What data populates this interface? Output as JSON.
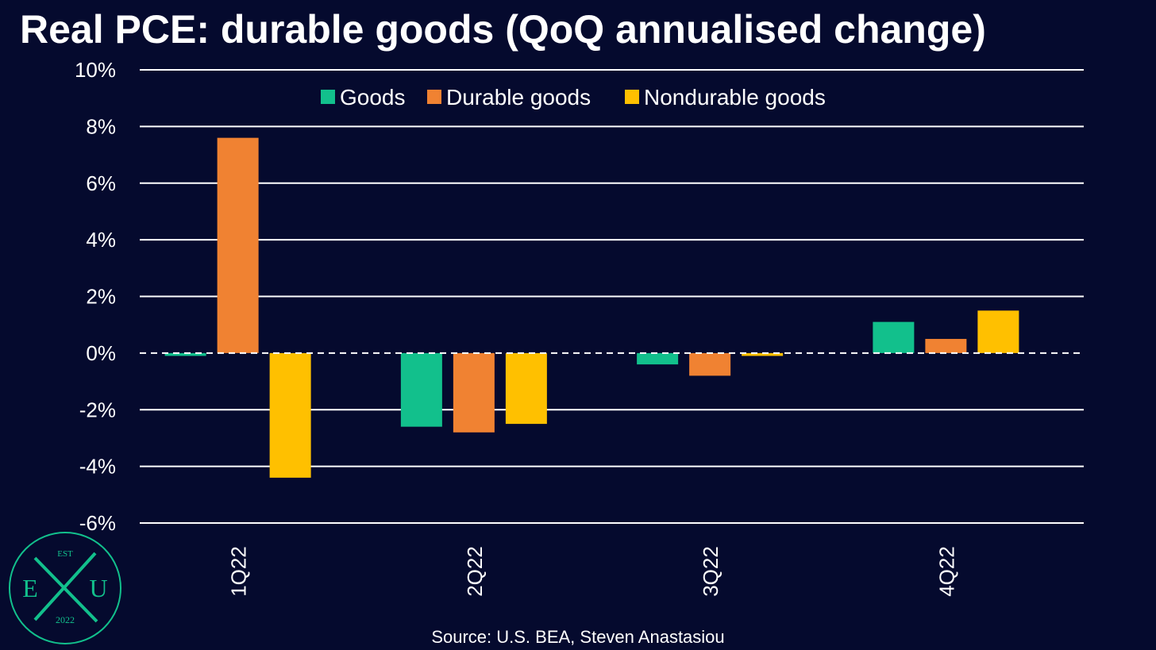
{
  "chart_data": {
    "type": "bar",
    "title": "Real PCE: durable goods (QoQ annualised change)",
    "categories": [
      "1Q22",
      "2Q22",
      "3Q22",
      "4Q22"
    ],
    "series": [
      {
        "name": "Goods",
        "color": "#12c08c",
        "values": [
          -0.1,
          -2.6,
          -0.4,
          1.1
        ]
      },
      {
        "name": "Durable goods",
        "color": "#f08232",
        "values": [
          7.6,
          -2.8,
          -0.8,
          0.5
        ]
      },
      {
        "name": "Nondurable goods",
        "color": "#ffc000",
        "values": [
          -4.4,
          -2.5,
          -0.1,
          1.5
        ]
      }
    ],
    "ylim": [
      -6,
      10
    ],
    "yticks": [
      10,
      8,
      6,
      4,
      2,
      0,
      -2,
      -4,
      -6
    ],
    "ytick_labels": [
      "10%",
      "8%",
      "6%",
      "4%",
      "2%",
      "0%",
      "-2%",
      "-4%",
      "-6%"
    ],
    "xlabel": "",
    "ylabel": "",
    "grid": true,
    "legend_position": "top-center",
    "zero_line_style": "dashed"
  },
  "source": "Source: U.S. BEA, Steven Anastasiou",
  "logo": {
    "top_text": "EST",
    "left_letter": "E",
    "right_letter": "U",
    "bottom_text": "2022",
    "color": "#12c08c"
  }
}
